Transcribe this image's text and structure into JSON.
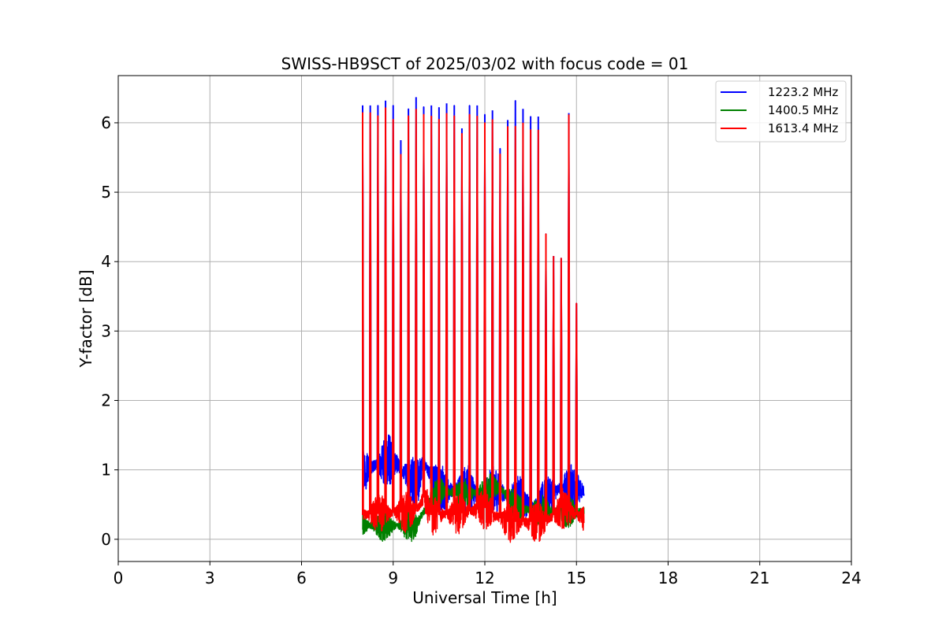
{
  "chart_data": {
    "type": "line",
    "title": "SWISS-HB9SCT of 2025/03/02 with focus code = 01",
    "xlabel": "Universal Time [h]",
    "ylabel": "Y-factor [dB]",
    "xlim": [
      0,
      24
    ],
    "ylim": [
      -0.32,
      6.68
    ],
    "xticks": [
      0,
      3,
      6,
      9,
      12,
      15,
      18,
      21,
      24
    ],
    "yticks": [
      0,
      1,
      2,
      3,
      4,
      5,
      6
    ],
    "grid": true,
    "legend_position": "upper right",
    "data_start_hour": 8.0,
    "data_end_hour": 15.25,
    "series": [
      {
        "name": "1223.2 MHz",
        "color": "#0000ff",
        "peaks": [
          {
            "x": 8.0,
            "y": 6.25
          },
          {
            "x": 8.25,
            "y": 6.25
          },
          {
            "x": 8.5,
            "y": 6.25
          },
          {
            "x": 8.75,
            "y": 6.32
          },
          {
            "x": 9.0,
            "y": 6.25
          },
          {
            "x": 9.25,
            "y": 5.75
          },
          {
            "x": 9.5,
            "y": 6.2
          },
          {
            "x": 9.75,
            "y": 6.37
          },
          {
            "x": 10.0,
            "y": 6.23
          },
          {
            "x": 10.25,
            "y": 6.25
          },
          {
            "x": 10.5,
            "y": 6.22
          },
          {
            "x": 10.75,
            "y": 6.28
          },
          {
            "x": 11.0,
            "y": 6.25
          },
          {
            "x": 11.25,
            "y": 5.92
          },
          {
            "x": 11.5,
            "y": 6.25
          },
          {
            "x": 11.75,
            "y": 6.25
          },
          {
            "x": 12.0,
            "y": 6.12
          },
          {
            "x": 12.25,
            "y": 6.18
          },
          {
            "x": 12.5,
            "y": 5.63
          },
          {
            "x": 12.75,
            "y": 6.04
          },
          {
            "x": 13.0,
            "y": 6.32
          },
          {
            "x": 13.25,
            "y": 6.2
          },
          {
            "x": 13.5,
            "y": 6.09
          },
          {
            "x": 13.75,
            "y": 6.09
          },
          {
            "x": 14.0,
            "y": 4.4
          },
          {
            "x": 14.25,
            "y": 4.08
          },
          {
            "x": 14.5,
            "y": 4.05
          },
          {
            "x": 14.75,
            "y": 6.14
          },
          {
            "x": 15.0,
            "y": 3.4
          }
        ],
        "baseline": [
          {
            "x": 8.0,
            "y": 1.0
          },
          {
            "x": 9.0,
            "y": 1.15
          },
          {
            "x": 9.75,
            "y": 0.75
          },
          {
            "x": 10.0,
            "y": 1.1
          },
          {
            "x": 10.5,
            "y": 0.7
          },
          {
            "x": 11.5,
            "y": 0.7
          },
          {
            "x": 11.75,
            "y": 0.6
          },
          {
            "x": 12.5,
            "y": 0.7
          },
          {
            "x": 12.75,
            "y": 0.6
          },
          {
            "x": 13.75,
            "y": 0.45
          },
          {
            "x": 14.5,
            "y": 0.75
          },
          {
            "x": 15.25,
            "y": 0.7
          }
        ]
      },
      {
        "name": "1400.5 MHz",
        "color": "#008000",
        "peaks": [],
        "baseline": [
          {
            "x": 8.0,
            "y": 0.2
          },
          {
            "x": 9.75,
            "y": 0.2
          },
          {
            "x": 10.0,
            "y": 0.4
          },
          {
            "x": 10.5,
            "y": 0.7
          },
          {
            "x": 11.5,
            "y": 0.65
          },
          {
            "x": 12.5,
            "y": 0.75
          },
          {
            "x": 13.0,
            "y": 0.45
          },
          {
            "x": 14.0,
            "y": 0.4
          },
          {
            "x": 15.25,
            "y": 0.4
          }
        ]
      },
      {
        "name": "1613.4 MHz",
        "color": "#ff0000",
        "peaks": [
          {
            "x": 8.0,
            "y": 6.15
          },
          {
            "x": 8.25,
            "y": 6.15
          },
          {
            "x": 8.5,
            "y": 6.1
          },
          {
            "x": 8.75,
            "y": 6.22
          },
          {
            "x": 9.0,
            "y": 6.05
          },
          {
            "x": 9.25,
            "y": 5.55
          },
          {
            "x": 9.5,
            "y": 6.1
          },
          {
            "x": 9.75,
            "y": 6.2
          },
          {
            "x": 10.0,
            "y": 6.12
          },
          {
            "x": 10.25,
            "y": 6.1
          },
          {
            "x": 10.5,
            "y": 6.05
          },
          {
            "x": 10.75,
            "y": 6.14
          },
          {
            "x": 11.0,
            "y": 6.1
          },
          {
            "x": 11.25,
            "y": 5.85
          },
          {
            "x": 11.5,
            "y": 6.12
          },
          {
            "x": 11.75,
            "y": 6.1
          },
          {
            "x": 12.0,
            "y": 6.0
          },
          {
            "x": 12.25,
            "y": 6.05
          },
          {
            "x": 12.5,
            "y": 5.55
          },
          {
            "x": 12.75,
            "y": 5.95
          },
          {
            "x": 13.0,
            "y": 5.95
          },
          {
            "x": 13.25,
            "y": 6.0
          },
          {
            "x": 13.5,
            "y": 5.9
          },
          {
            "x": 13.75,
            "y": 5.9
          },
          {
            "x": 14.0,
            "y": 4.4
          },
          {
            "x": 14.25,
            "y": 4.08
          },
          {
            "x": 14.5,
            "y": 4.05
          },
          {
            "x": 14.75,
            "y": 6.12
          },
          {
            "x": 15.0,
            "y": 3.4
          }
        ],
        "baseline": [
          {
            "x": 8.0,
            "y": 0.35
          },
          {
            "x": 9.75,
            "y": 0.4
          },
          {
            "x": 10.0,
            "y": 0.6
          },
          {
            "x": 10.25,
            "y": 0.35
          },
          {
            "x": 11.0,
            "y": 0.35
          },
          {
            "x": 12.0,
            "y": 0.45
          },
          {
            "x": 12.5,
            "y": 0.3
          },
          {
            "x": 12.75,
            "y": 0.25
          },
          {
            "x": 14.0,
            "y": 0.25
          },
          {
            "x": 14.5,
            "y": 0.45
          },
          {
            "x": 15.25,
            "y": 0.3
          }
        ]
      }
    ]
  }
}
